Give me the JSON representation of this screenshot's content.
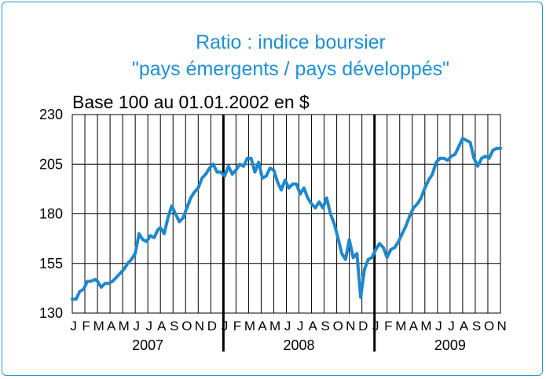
{
  "chart_data": {
    "type": "line",
    "title": [
      "Ratio : indice boursier",
      "\"pays émergents / pays développés\""
    ],
    "subtitle": "Base 100 au 01.01.2002 en $",
    "ylim": [
      130,
      230
    ],
    "yticks": [
      130,
      155,
      180,
      205,
      230
    ],
    "ytick_labels": [
      "130",
      "155",
      "180",
      "205",
      "230"
    ],
    "xlim": [
      0,
      34
    ],
    "month_labels": [
      "J",
      "F",
      "M",
      "A",
      "M",
      "J",
      "J",
      "A",
      "S",
      "O",
      "N",
      "D",
      "J",
      "F",
      "M",
      "A",
      "M",
      "J",
      "J",
      "A",
      "S",
      "O",
      "N",
      "D",
      "J",
      "F",
      "M",
      "A",
      "M",
      "J",
      "J",
      "A",
      "S",
      "O",
      "N"
    ],
    "year_labels": [
      "2007",
      "2008",
      "2009"
    ],
    "grid": true,
    "line_color": "#1f88cc",
    "series": [
      {
        "x": [
          0.0,
          0.3,
          0.6,
          0.9,
          1.2,
          1.5,
          1.8,
          2.0,
          2.3,
          2.6,
          2.9,
          3.2,
          3.5,
          3.8,
          4.1,
          4.4,
          4.7,
          5.0,
          5.3,
          5.6,
          5.9,
          6.2,
          6.5,
          6.8,
          7.0,
          7.3,
          7.6,
          7.9,
          8.2,
          8.5,
          8.8,
          9.1,
          9.4,
          9.7,
          10.0,
          10.3,
          10.6,
          10.9,
          11.2,
          11.5,
          11.8,
          12.1,
          12.4,
          12.7,
          13.0,
          13.3,
          13.6,
          13.9,
          14.2,
          14.5,
          14.8,
          15.1,
          15.4,
          15.7,
          16.0,
          16.3,
          16.6,
          16.9,
          17.2,
          17.5,
          17.8,
          18.1,
          18.4,
          18.7,
          19.0,
          19.3,
          19.6,
          19.9,
          20.2,
          20.5,
          20.8,
          21.1,
          21.4,
          21.7,
          22.0,
          22.3,
          22.6,
          22.9,
          23.2,
          23.5,
          23.8,
          24.1,
          24.4,
          24.7,
          25.0,
          25.3,
          25.6,
          25.9,
          26.2,
          26.5,
          26.8,
          27.1,
          27.4,
          27.7,
          28.0,
          28.3,
          28.6,
          28.9,
          29.2,
          29.5,
          29.8,
          30.1,
          30.4,
          30.7,
          31.0,
          31.3,
          31.6,
          31.9,
          32.2,
          32.5,
          32.8,
          33.1,
          33.4,
          33.7,
          34.0
        ],
        "values": [
          137,
          137,
          141,
          142,
          146,
          146,
          147,
          146,
          143,
          145,
          145,
          146,
          148,
          150,
          152,
          155,
          157,
          160,
          170,
          167,
          166,
          169,
          168,
          172,
          173,
          170,
          178,
          184,
          180,
          176,
          178,
          183,
          188,
          191,
          193,
          198,
          200,
          203,
          205,
          201,
          201,
          199,
          204,
          200,
          202,
          205,
          204,
          208,
          208,
          201,
          206,
          198,
          199,
          203,
          202,
          196,
          192,
          197,
          193,
          195,
          195,
          190,
          193,
          188,
          185,
          183,
          186,
          183,
          188,
          180,
          175,
          168,
          160,
          157,
          167,
          158,
          160,
          138,
          152,
          157,
          158,
          162,
          165,
          163,
          158,
          162,
          163,
          166,
          170,
          174,
          179,
          183,
          185,
          188,
          193,
          197,
          200,
          206,
          208,
          208,
          207,
          209,
          210,
          214,
          218,
          217,
          216,
          208,
          204,
          208,
          209,
          208,
          212,
          213,
          213
        ]
      }
    ]
  }
}
